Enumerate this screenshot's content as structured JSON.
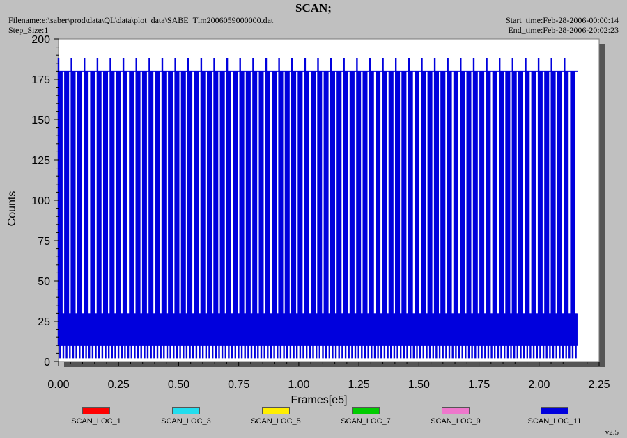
{
  "header": {
    "title": "SCAN;",
    "filename": "Filename:e:\\saber\\prod\\data\\QL\\data\\plot_data\\SABE_Tlm2006059000000.dat",
    "step_size": "Step_Size:1",
    "start_time": "Start_time:Feb-28-2006-00:00:14",
    "end_time": "End_time:Feb-28-2006-20:02:23"
  },
  "version": "v2.5",
  "chart_data": {
    "type": "line",
    "xlabel": "Frames[e5]",
    "ylabel": "Counts",
    "xlim": [
      0,
      2.25
    ],
    "ylim": [
      0,
      200
    ],
    "xticks": [
      "0.00",
      "0.25",
      "0.50",
      "0.75",
      "1.00",
      "1.25",
      "1.50",
      "1.75",
      "2.00",
      "2.25"
    ],
    "yticks": [
      "0",
      "25",
      "50",
      "75",
      "100",
      "125",
      "150",
      "175",
      "200"
    ],
    "legend_position": "bottom",
    "series": [
      {
        "name": "SCAN_LOC_1",
        "color": "#ff0000"
      },
      {
        "name": "SCAN_LOC_3",
        "color": "#22ddee"
      },
      {
        "name": "SCAN_LOC_5",
        "color": "#ffee00"
      },
      {
        "name": "SCAN_LOC_7",
        "color": "#00cc00"
      },
      {
        "name": "SCAN_LOC_9",
        "color": "#ee77cc"
      },
      {
        "name": "SCAN_LOC_11",
        "color": "#0000dd"
      }
    ],
    "scan_pattern": {
      "series": "SCAN_LOC_11",
      "x_start": 0.0,
      "x_end": 2.16,
      "cycle_count": 80,
      "peak_counts": 180,
      "tall_peak_counts": 188,
      "band_low_counts": 10,
      "band_high_counts": 30,
      "floor_counts": 2
    }
  }
}
